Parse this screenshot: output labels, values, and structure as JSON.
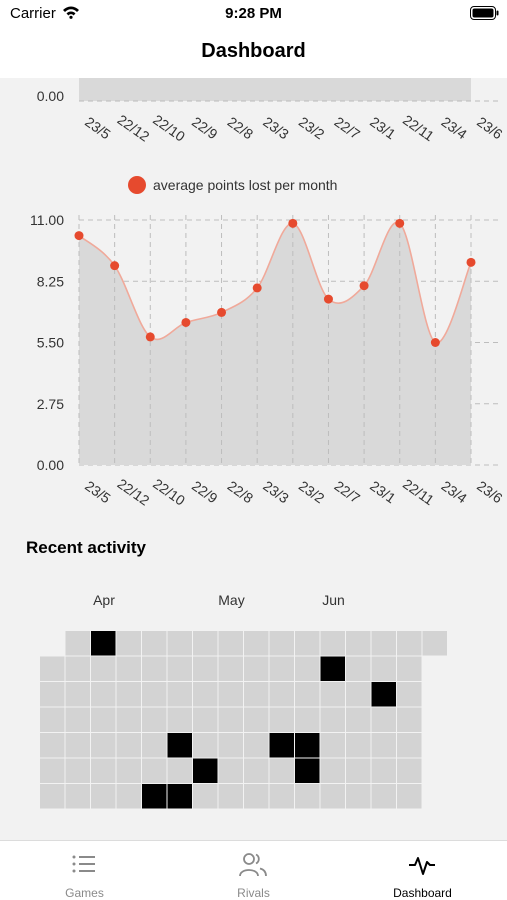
{
  "status_bar": {
    "carrier": "Carrier",
    "time": "9:28 PM"
  },
  "nav": {
    "title": "Dashboard"
  },
  "top_chart": {
    "y_label": "0.00",
    "x_labels": [
      "23/5",
      "22/12",
      "22/10",
      "22/9",
      "22/8",
      "23/3",
      "23/2",
      "22/7",
      "23/1",
      "22/11",
      "23/4",
      "23/6"
    ]
  },
  "chart_data": {
    "type": "area",
    "legend": "average points lost per month",
    "x": [
      "23/5",
      "22/12",
      "22/10",
      "22/9",
      "22/8",
      "23/3",
      "23/2",
      "22/7",
      "23/1",
      "22/11",
      "23/4",
      "23/6"
    ],
    "series": [
      {
        "name": "average points lost per month",
        "values": [
          10.3,
          8.95,
          5.75,
          6.4,
          6.85,
          7.95,
          10.85,
          7.45,
          8.05,
          10.85,
          5.5,
          9.1
        ]
      }
    ],
    "y_ticks": [
      "11.00",
      "8.25",
      "5.50",
      "2.75",
      "0.00"
    ],
    "ylim": [
      0,
      11
    ],
    "grid": true,
    "legend_position": "top-center",
    "fill_color": "#d9d9d9",
    "line_color": "#f0a99a",
    "point_color": "#e64a2e"
  },
  "activity": {
    "title": "Recent activity",
    "months": [
      "Apr",
      "May",
      "Jun"
    ],
    "columns": [
      [
        0,
        0,
        0,
        0,
        0,
        0
      ],
      [
        0,
        0,
        0,
        0,
        0,
        0,
        0
      ],
      [
        1,
        0,
        0,
        0,
        0,
        0,
        0
      ],
      [
        0,
        0,
        0,
        0,
        0,
        0,
        0
      ],
      [
        0,
        0,
        0,
        0,
        0,
        0,
        1
      ],
      [
        0,
        0,
        0,
        0,
        1,
        0,
        1
      ],
      [
        0,
        0,
        0,
        0,
        0,
        1,
        0
      ],
      [
        0,
        0,
        0,
        0,
        0,
        0,
        0
      ],
      [
        0,
        0,
        0,
        0,
        0,
        0,
        0
      ],
      [
        0,
        0,
        0,
        0,
        1,
        0,
        0
      ],
      [
        0,
        0,
        0,
        0,
        1,
        1,
        0
      ],
      [
        0,
        1,
        0,
        0,
        0,
        0,
        0
      ],
      [
        0,
        0,
        0,
        0,
        0,
        0,
        0
      ],
      [
        0,
        0,
        1,
        0,
        0,
        0,
        0
      ],
      [
        0,
        0,
        0,
        0,
        0,
        0,
        0
      ],
      [
        0
      ]
    ],
    "empty_color": "#d3d3d3",
    "filled_color": "#000000"
  },
  "tabs": [
    {
      "label": "Games",
      "icon": "list-icon",
      "active": false
    },
    {
      "label": "Rivals",
      "icon": "people-icon",
      "active": false
    },
    {
      "label": "Dashboard",
      "icon": "pulse-icon",
      "active": true
    }
  ]
}
